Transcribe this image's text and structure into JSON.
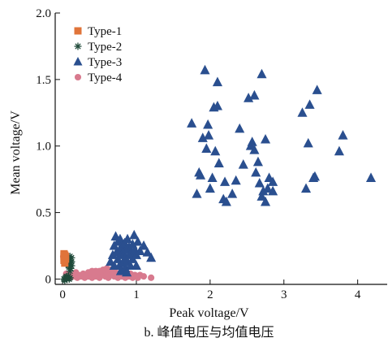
{
  "chart_data": {
    "type": "scatter",
    "title": "",
    "caption": "b. 峰值电压与均值电压",
    "xlabel": "Peak voltage/V",
    "ylabel": "Mean voltage/V",
    "xlim": [
      -0.1,
      4.4
    ],
    "ylim": [
      -0.04,
      2.0
    ],
    "xticks": [
      0,
      1,
      2,
      3,
      4
    ],
    "yticks": [
      0,
      0.5,
      1.0,
      1.5,
      2.0
    ],
    "ytick_labels": [
      "0",
      "0.5",
      "1.0",
      "1.5",
      "2.0"
    ],
    "grid": false,
    "legend_position": "top-left",
    "series": [
      {
        "name": "Type-1",
        "marker": "square",
        "color": "#e0743a",
        "points": [
          [
            0.02,
            0.19
          ],
          [
            0.03,
            0.18
          ],
          [
            0.02,
            0.17
          ],
          [
            0.03,
            0.16
          ],
          [
            0.02,
            0.15
          ],
          [
            0.04,
            0.17
          ],
          [
            0.02,
            0.14
          ],
          [
            0.03,
            0.12
          ],
          [
            0.02,
            0.18
          ],
          [
            0.04,
            0.15
          ]
        ]
      },
      {
        "name": "Type-2",
        "marker": "star",
        "color": "#1f4a3a",
        "points": [
          [
            0.02,
            0.0
          ],
          [
            0.04,
            0.01
          ],
          [
            0.06,
            0.0
          ],
          [
            0.08,
            0.02
          ],
          [
            0.1,
            0.01
          ],
          [
            0.03,
            -0.01
          ],
          [
            0.05,
            0.02
          ],
          [
            0.07,
            0.12
          ],
          [
            0.09,
            0.15
          ],
          [
            0.1,
            0.14
          ],
          [
            0.11,
            0.12
          ],
          [
            0.12,
            0.16
          ],
          [
            0.08,
            0.1
          ],
          [
            0.1,
            0.17
          ],
          [
            0.12,
            0.13
          ],
          [
            0.09,
            0.09
          ],
          [
            0.11,
            0.08
          ],
          [
            0.07,
            0.14
          ],
          [
            0.12,
            0.1
          ],
          [
            0.1,
            0.06
          ],
          [
            0.06,
            0.01
          ],
          [
            0.09,
            0.0
          ]
        ]
      },
      {
        "name": "Type-3",
        "marker": "triangle",
        "color": "#2a4f8f",
        "points": [
          [
            1.75,
            1.17
          ],
          [
            1.82,
            0.64
          ],
          [
            1.85,
            0.8
          ],
          [
            1.87,
            0.78
          ],
          [
            1.9,
            1.06
          ],
          [
            1.93,
            1.57
          ],
          [
            1.95,
            0.98
          ],
          [
            1.97,
            1.16
          ],
          [
            1.98,
            1.08
          ],
          [
            2.0,
            0.68
          ],
          [
            2.03,
            0.76
          ],
          [
            2.05,
            1.29
          ],
          [
            2.07,
            0.96
          ],
          [
            2.1,
            1.48
          ],
          [
            2.1,
            1.3
          ],
          [
            2.12,
            0.87
          ],
          [
            2.18,
            0.6
          ],
          [
            2.2,
            0.73
          ],
          [
            2.22,
            0.58
          ],
          [
            2.3,
            0.64
          ],
          [
            2.35,
            0.74
          ],
          [
            2.4,
            1.13
          ],
          [
            2.45,
            0.86
          ],
          [
            2.52,
            1.36
          ],
          [
            2.55,
            1.0
          ],
          [
            2.57,
            1.03
          ],
          [
            2.6,
            0.97
          ],
          [
            2.6,
            1.38
          ],
          [
            2.62,
            0.8
          ],
          [
            2.65,
            0.88
          ],
          [
            2.67,
            0.72
          ],
          [
            2.7,
            1.54
          ],
          [
            2.7,
            0.62
          ],
          [
            2.72,
            0.66
          ],
          [
            2.75,
            1.05
          ],
          [
            2.75,
            0.58
          ],
          [
            2.78,
            0.68
          ],
          [
            2.8,
            0.76
          ],
          [
            2.85,
            0.73
          ],
          [
            2.85,
            0.66
          ],
          [
            3.25,
            1.25
          ],
          [
            3.3,
            0.68
          ],
          [
            3.33,
            1.02
          ],
          [
            3.35,
            1.31
          ],
          [
            3.4,
            0.76
          ],
          [
            3.42,
            0.77
          ],
          [
            3.45,
            1.42
          ],
          [
            3.75,
            0.96
          ],
          [
            3.8,
            1.08
          ],
          [
            4.18,
            0.76
          ],
          [
            0.65,
            0.13
          ],
          [
            0.68,
            0.18
          ],
          [
            0.7,
            0.25
          ],
          [
            0.72,
            0.32
          ],
          [
            0.73,
            0.2
          ],
          [
            0.75,
            0.15
          ],
          [
            0.75,
            0.28
          ],
          [
            0.77,
            0.1
          ],
          [
            0.78,
            0.22
          ],
          [
            0.78,
            0.3
          ],
          [
            0.8,
            0.18
          ],
          [
            0.8,
            0.25
          ],
          [
            0.82,
            0.12
          ],
          [
            0.82,
            0.2
          ],
          [
            0.84,
            0.27
          ],
          [
            0.85,
            0.08
          ],
          [
            0.85,
            0.16
          ],
          [
            0.86,
            0.22
          ],
          [
            0.88,
            0.3
          ],
          [
            0.88,
            0.13
          ],
          [
            0.9,
            0.18
          ],
          [
            0.9,
            0.24
          ],
          [
            0.92,
            0.1
          ],
          [
            0.93,
            0.2
          ],
          [
            0.95,
            0.26
          ],
          [
            0.95,
            0.15
          ],
          [
            0.97,
            0.33
          ],
          [
            0.98,
            0.22
          ],
          [
            1.0,
            0.18
          ],
          [
            1.0,
            0.1
          ],
          [
            1.02,
            0.28
          ],
          [
            1.05,
            0.21
          ],
          [
            1.1,
            0.25
          ],
          [
            1.15,
            0.2
          ],
          [
            1.2,
            0.16
          ],
          [
            0.7,
            0.1
          ],
          [
            0.79,
            0.06
          ],
          [
            0.87,
            0.05
          ]
        ]
      },
      {
        "name": "Type-4",
        "marker": "circle",
        "color": "#d87a8e",
        "points": [
          [
            0.01,
            0.17
          ],
          [
            0.02,
            0.14
          ],
          [
            0.03,
            0.12
          ],
          [
            0.03,
            0.16
          ],
          [
            0.05,
            0.04
          ],
          [
            0.08,
            0.02
          ],
          [
            0.1,
            0.01
          ],
          [
            0.12,
            0.03
          ],
          [
            0.15,
            0.02
          ],
          [
            0.18,
            0.05
          ],
          [
            0.2,
            0.01
          ],
          [
            0.22,
            0.03
          ],
          [
            0.25,
            0.02
          ],
          [
            0.28,
            0.04
          ],
          [
            0.3,
            0.01
          ],
          [
            0.32,
            0.03
          ],
          [
            0.35,
            0.02
          ],
          [
            0.38,
            0.04
          ],
          [
            0.4,
            0.01
          ],
          [
            0.42,
            0.03
          ],
          [
            0.45,
            0.02
          ],
          [
            0.48,
            0.05
          ],
          [
            0.5,
            0.01
          ],
          [
            0.52,
            0.03
          ],
          [
            0.55,
            0.04
          ],
          [
            0.58,
            0.02
          ],
          [
            0.6,
            0.05
          ],
          [
            0.62,
            0.01
          ],
          [
            0.65,
            0.03
          ],
          [
            0.68,
            0.04
          ],
          [
            0.7,
            0.02
          ],
          [
            0.72,
            0.05
          ],
          [
            0.75,
            0.01
          ],
          [
            0.78,
            0.03
          ],
          [
            0.8,
            0.02
          ],
          [
            0.82,
            0.04
          ],
          [
            0.85,
            0.01
          ],
          [
            0.88,
            0.03
          ],
          [
            0.9,
            0.02
          ],
          [
            0.92,
            0.04
          ],
          [
            0.95,
            0.01
          ],
          [
            0.98,
            0.03
          ],
          [
            1.0,
            0.02
          ],
          [
            1.02,
            0.01
          ],
          [
            1.05,
            0.03
          ],
          [
            1.1,
            0.02
          ],
          [
            1.2,
            0.01
          ],
          [
            0.55,
            0.07
          ],
          [
            0.6,
            0.08
          ],
          [
            0.5,
            0.06
          ],
          [
            0.45,
            0.06
          ],
          [
            0.4,
            0.06
          ],
          [
            0.35,
            0.05
          ],
          [
            0.65,
            0.07
          ],
          [
            0.7,
            0.06
          ]
        ]
      }
    ]
  }
}
